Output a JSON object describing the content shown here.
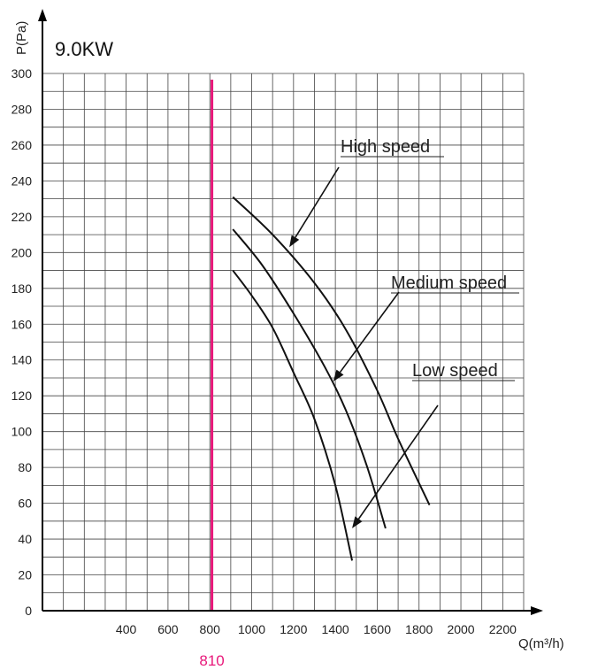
{
  "chart_data": {
    "type": "line",
    "title": "9.0KW",
    "xlabel": "Q(m³/h)",
    "ylabel": "P(Pa)",
    "xlim": [
      0,
      2300
    ],
    "ylim": [
      0,
      300
    ],
    "grid": true,
    "x_ticks": [
      400,
      600,
      800,
      1000,
      1200,
      1400,
      1600,
      1800,
      2000,
      2200
    ],
    "y_ticks": [
      0,
      20,
      40,
      60,
      80,
      100,
      120,
      140,
      160,
      180,
      200,
      220,
      240,
      260,
      280,
      300
    ],
    "series": [
      {
        "name": "High speed",
        "x": [
          910,
          1100,
          1300,
          1450,
          1600,
          1700,
          1850
        ],
        "y": [
          231,
          210,
          183,
          157,
          123,
          96,
          59
        ]
      },
      {
        "name": "Medium speed",
        "x": [
          910,
          1050,
          1200,
          1350,
          1450,
          1550,
          1640
        ],
        "y": [
          213,
          193,
          166,
          136,
          112,
          81,
          46
        ]
      },
      {
        "name": "Low speed",
        "x": [
          910,
          1000,
          1100,
          1200,
          1300,
          1400,
          1480
        ],
        "y": [
          190,
          176,
          158,
          133,
          107,
          70,
          28
        ]
      }
    ],
    "annotations": [
      {
        "text": "High speed",
        "arrow_to": [
          1180,
          203
        ]
      },
      {
        "text": "Medium speed",
        "arrow_to": [
          1390,
          128
        ]
      },
      {
        "text": "Low speed",
        "arrow_to": [
          1480,
          46
        ]
      }
    ],
    "reference_line": {
      "x": 810,
      "label": "810",
      "color": "#e8187a"
    }
  }
}
